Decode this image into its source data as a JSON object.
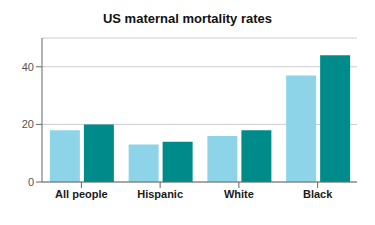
{
  "chart_data": {
    "type": "bar",
    "title": "US maternal mortality rates",
    "categories": [
      "All people",
      "Hispanic",
      "White",
      "Black"
    ],
    "series": [
      {
        "color": "#8dd4e8",
        "values": [
          18,
          13,
          16,
          37
        ]
      },
      {
        "color": "#008b8b",
        "values": [
          20,
          14,
          18,
          44
        ]
      }
    ],
    "ylim": [
      0,
      50
    ],
    "yticks": [
      0,
      20,
      40
    ],
    "grid": true
  }
}
